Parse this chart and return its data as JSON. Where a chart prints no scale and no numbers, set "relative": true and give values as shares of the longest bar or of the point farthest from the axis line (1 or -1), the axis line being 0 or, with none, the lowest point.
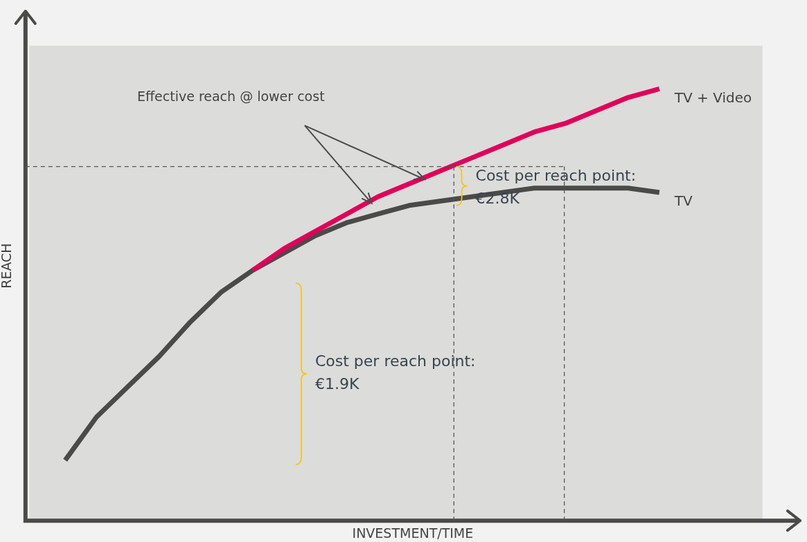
{
  "chart_data": {
    "type": "line",
    "relative": true,
    "xlabel": "INVESTMENT/TIME",
    "ylabel": "REACH",
    "legend": false,
    "marker": "none",
    "categories": [
      null,
      null,
      null,
      null,
      null,
      null,
      null,
      null,
      null,
      null,
      null,
      null,
      null,
      null,
      null,
      null,
      null,
      null,
      null,
      null
    ],
    "series": [
      {
        "name": "TV + Video",
        "color": "#e0005a",
        "values": [
          null,
          null,
          null,
          null,
          null,
          null,
          0.58,
          0.63,
          0.67,
          0.71,
          0.75,
          0.78,
          0.81,
          0.84,
          0.87,
          0.9,
          0.92,
          0.95,
          0.98,
          1
        ]
      },
      {
        "name": "TV",
        "color": "#4a4a48",
        "values": [
          0.14,
          0.24,
          0.31,
          0.38,
          0.46,
          0.53,
          0.58,
          0.62,
          0.66,
          0.69,
          0.71,
          0.73,
          0.74,
          0.75,
          0.76,
          0.77,
          0.77,
          0.77,
          0.77,
          0.76
        ]
      }
    ],
    "annotations": [
      "Effective reach @ lower cost",
      "Cost per reach point:\n€1.9K",
      "Cost per reach point:\n€2.8K"
    ]
  }
}
